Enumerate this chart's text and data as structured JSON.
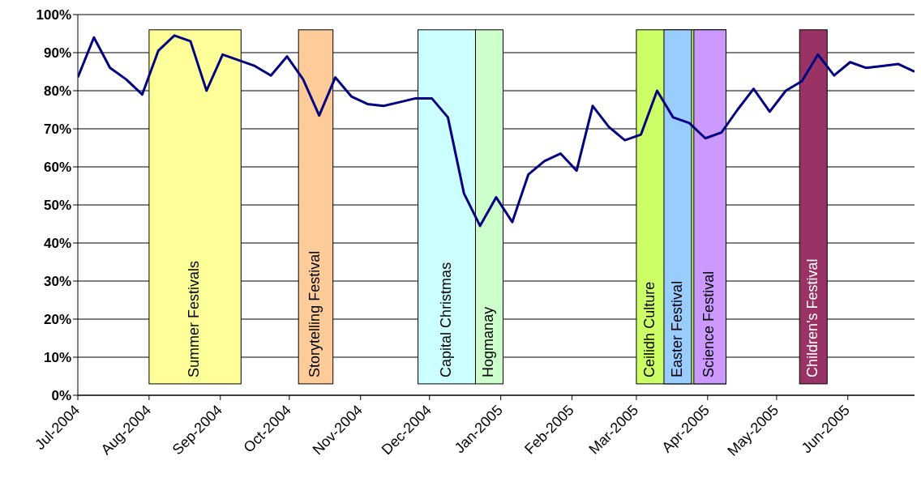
{
  "chart_data": {
    "type": "line",
    "x": [
      "2004-07-01",
      "2004-07-08",
      "2004-07-15",
      "2004-07-22",
      "2004-07-29",
      "2004-08-05",
      "2004-08-12",
      "2004-08-19",
      "2004-08-26",
      "2004-09-02",
      "2004-09-09",
      "2004-09-16",
      "2004-09-23",
      "2004-09-30",
      "2004-10-07",
      "2004-10-14",
      "2004-10-21",
      "2004-10-28",
      "2004-11-04",
      "2004-11-11",
      "2004-11-18",
      "2004-11-25",
      "2004-12-02",
      "2004-12-09",
      "2004-12-16",
      "2004-12-23",
      "2004-12-30",
      "2005-01-06",
      "2005-01-13",
      "2005-01-20",
      "2005-01-27",
      "2005-02-03",
      "2005-02-10",
      "2005-02-17",
      "2005-02-24",
      "2005-03-03",
      "2005-03-10",
      "2005-03-17",
      "2005-03-24",
      "2005-03-31",
      "2005-04-07",
      "2005-04-14",
      "2005-04-21",
      "2005-04-28",
      "2005-05-05",
      "2005-05-12",
      "2005-05-19",
      "2005-05-26",
      "2005-06-02",
      "2005-06-09",
      "2005-06-16",
      "2005-06-23",
      "2005-06-30"
    ],
    "series": [
      {
        "color": "#000080",
        "values": [
          83.5,
          94,
          86,
          83,
          79,
          90.5,
          94.5,
          93,
          80,
          89.5,
          88,
          86.5,
          84,
          89,
          83,
          73.5,
          83.5,
          78.5,
          76.5,
          76,
          77,
          78,
          78,
          73,
          53,
          44.5,
          52,
          45.5,
          58,
          61.5,
          63.5,
          59,
          76,
          70.5,
          67,
          68.5,
          80,
          73,
          71.5,
          67.5,
          69,
          75,
          80.5,
          74.5,
          80,
          82.5,
          89.5,
          84,
          87.5,
          86,
          86.5,
          87,
          85
        ]
      }
    ],
    "xlim": [
      "2004-07-01",
      "2005-06-30"
    ],
    "xticks": [
      {
        "value": "2004-07-01",
        "label": "Jul-2004"
      },
      {
        "value": "2004-08-01",
        "label": "Aug-2004"
      },
      {
        "value": "2004-09-01",
        "label": "Sep-2004"
      },
      {
        "value": "2004-10-01",
        "label": "Oct-2004"
      },
      {
        "value": "2004-11-01",
        "label": "Nov-2004"
      },
      {
        "value": "2004-12-01",
        "label": "Dec-2004"
      },
      {
        "value": "2005-01-01",
        "label": "Jan-2005"
      },
      {
        "value": "2005-02-01",
        "label": "Feb-2005"
      },
      {
        "value": "2005-03-01",
        "label": "Mar-2005"
      },
      {
        "value": "2005-04-01",
        "label": "Apr-2005"
      },
      {
        "value": "2005-05-01",
        "label": "May-2005"
      },
      {
        "value": "2005-06-01",
        "label": "Jun-2005"
      }
    ],
    "ylim": [
      0,
      100
    ],
    "yticks": [
      {
        "value": 0,
        "label": "0%"
      },
      {
        "value": 10,
        "label": "10%"
      },
      {
        "value": 20,
        "label": "20%"
      },
      {
        "value": 30,
        "label": "30%"
      },
      {
        "value": 40,
        "label": "40%"
      },
      {
        "value": 50,
        "label": "50%"
      },
      {
        "value": 60,
        "label": "60%"
      },
      {
        "value": 70,
        "label": "70%"
      },
      {
        "value": 80,
        "label": "80%"
      },
      {
        "value": 90,
        "label": "90%"
      },
      {
        "value": 100,
        "label": "100%"
      }
    ],
    "grid": "y",
    "marker": "none",
    "line_style": "solid",
    "bands": [
      {
        "axis": "x",
        "from": "2004-08-01",
        "to": "2004-09-10",
        "label": "Summer Festivals",
        "color": "#ffff99"
      },
      {
        "axis": "x",
        "from": "2004-10-05",
        "to": "2004-10-20",
        "label": "Storytelling Festival",
        "color": "#ffcc99"
      },
      {
        "axis": "x",
        "from": "2004-11-26",
        "to": "2004-12-21",
        "label": "Capital Christmas",
        "color": "#ccffff"
      },
      {
        "axis": "x",
        "from": "2004-12-21",
        "to": "2005-01-02",
        "label": "Hogmanay",
        "color": "#ccffcc"
      },
      {
        "axis": "x",
        "from": "2005-03-01",
        "to": "2005-04-09",
        "label": "Ceilidh Culture",
        "color": "#ccff66"
      },
      {
        "axis": "x",
        "from": "2005-03-13",
        "to": "2005-03-25",
        "label": "Easter Festival",
        "color": "#99ccff"
      },
      {
        "axis": "x",
        "from": "2005-03-26",
        "to": "2005-04-09",
        "label": "Science Festival",
        "color": "#cc99ff"
      },
      {
        "axis": "x",
        "from": "2005-05-11",
        "to": "2005-05-23",
        "label": "Children's Festival",
        "color": "#993366"
      }
    ]
  }
}
